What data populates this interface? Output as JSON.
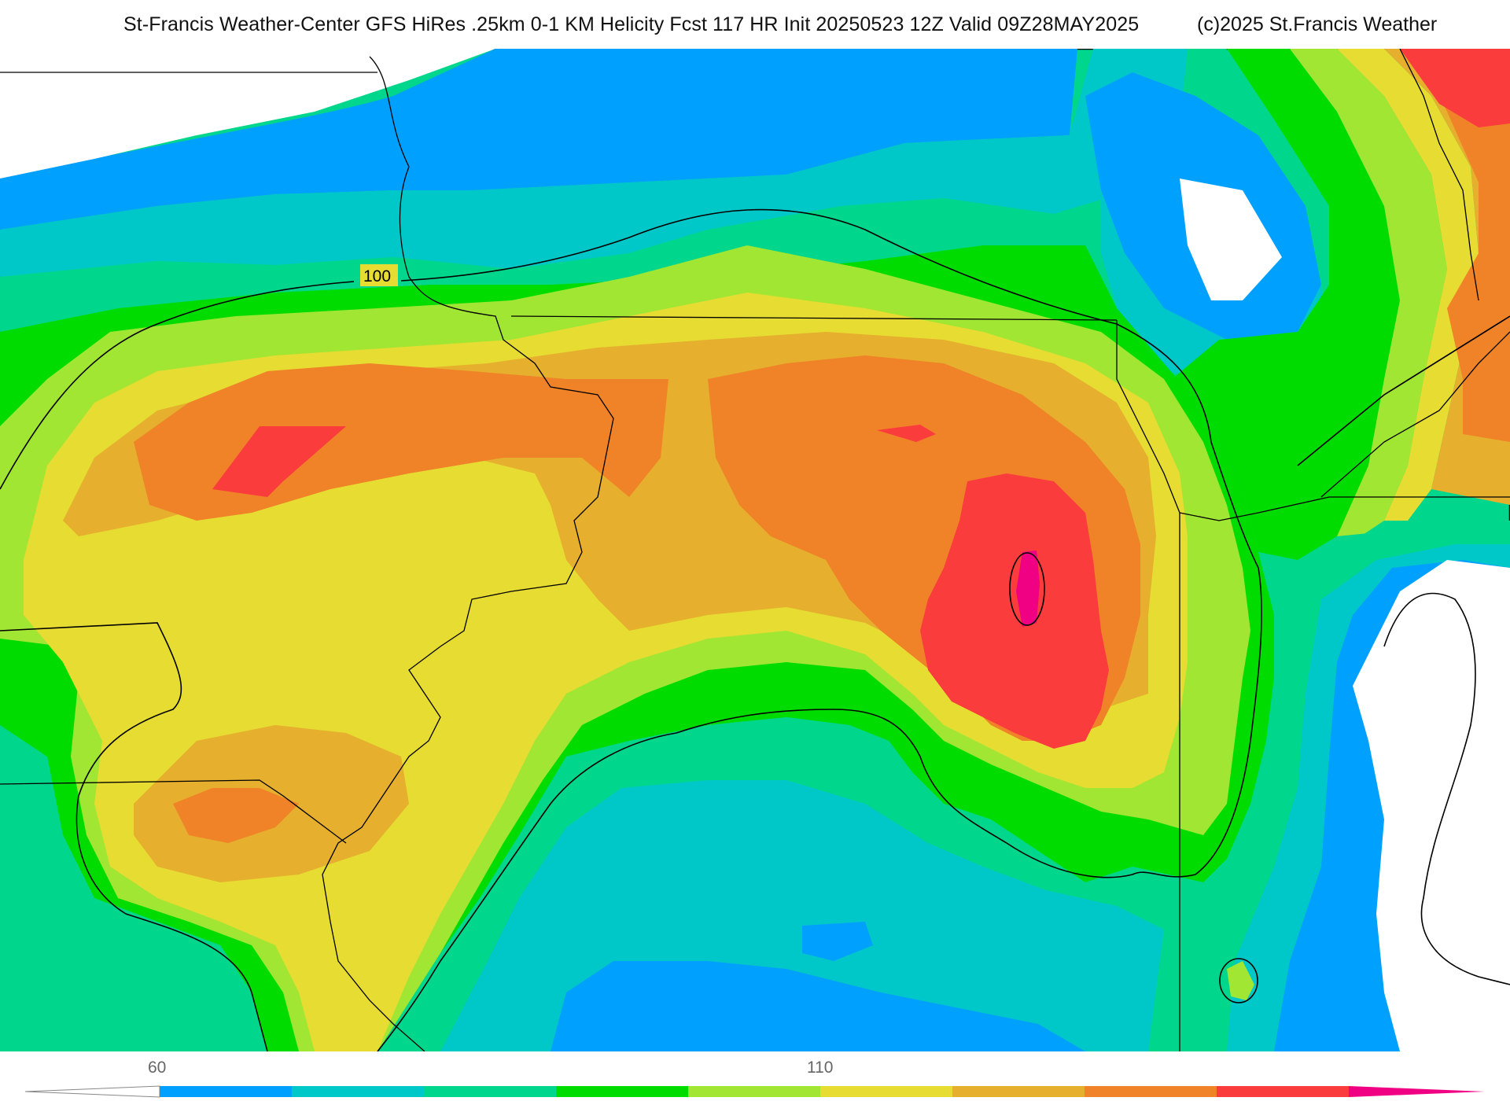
{
  "header": {
    "title": "St-Francis Weather-Center GFS HiRes .25km 0-1 KM Helicity Fcst 117 HR Init 20250523 12Z  Valid 09Z28MAY2025",
    "copyright": "(c)2025 St.Francis Weather"
  },
  "map": {
    "contour_label": "100",
    "palette": {
      "lt60": "#ffffff",
      "b1": "#00a0ff",
      "b2": "#00c8c8",
      "b3": "#00d68c",
      "b4": "#00dc00",
      "b5": "#a0e632",
      "b6": "#e6dc32",
      "b7": "#e6af2d",
      "b8": "#f08228",
      "b9": "#fa3c3c",
      "b10": "#f00082"
    }
  },
  "colorbar": {
    "tick_labels": [
      "60",
      "110"
    ]
  }
}
